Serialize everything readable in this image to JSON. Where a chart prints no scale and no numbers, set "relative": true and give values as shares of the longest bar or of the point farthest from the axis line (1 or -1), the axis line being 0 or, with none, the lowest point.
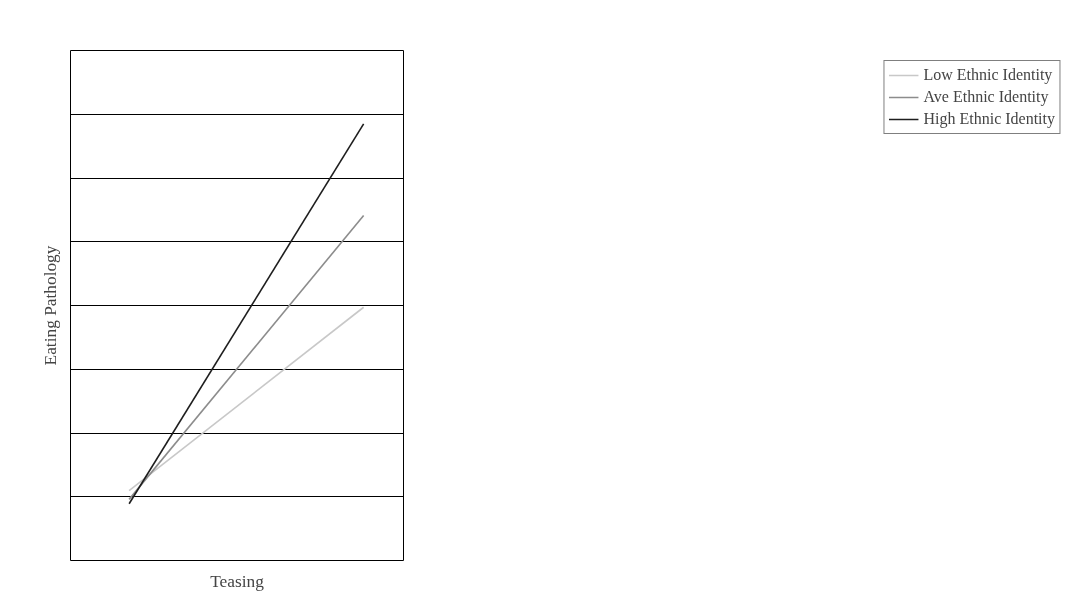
{
  "chart_data": {
    "type": "line",
    "xlabel": "Teasing",
    "ylabel": "Eating Pathology",
    "categories": [
      null,
      null
    ],
    "relative": true,
    "grid": "y",
    "legend": "right",
    "marker": "none",
    "line_style": "solid",
    "series": [
      {
        "name": "Low Ethnic Identity",
        "color": "#c8c8c8",
        "values": [
          0.16,
          0.58
        ]
      },
      {
        "name": "Ave Ethnic Identity",
        "color": "#8c8c8c",
        "values": [
          0.14,
          0.79
        ]
      },
      {
        "name": "High Ethnic Identity",
        "color": "#1e1e1e",
        "values": [
          0.13,
          1.0
        ]
      }
    ]
  }
}
